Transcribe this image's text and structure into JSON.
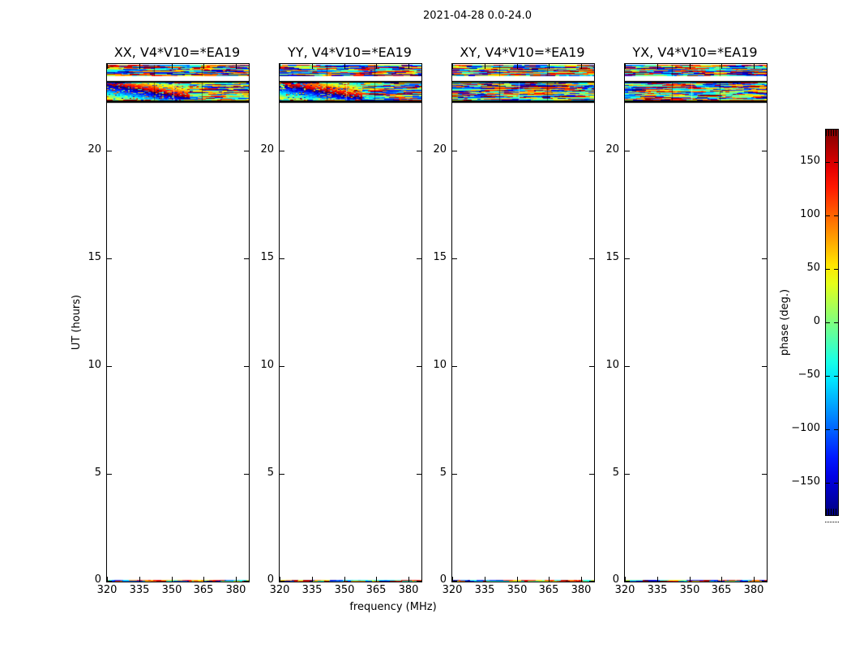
{
  "chart_data": {
    "type": "heatmap",
    "suptitle": "2021-04-28 0.0-24.0",
    "xlabel": "frequency (MHz)",
    "ylabel": "UT (hours)",
    "panels": [
      {
        "title": "XX, V4*V10=*EA19",
        "phase_wrap_diagonal": true
      },
      {
        "title": "YY, V4*V10=*EA19",
        "phase_wrap_diagonal": true
      },
      {
        "title": "XY, V4*V10=*EA19",
        "phase_wrap_diagonal": false
      },
      {
        "title": "YX, V4*V10=*EA19",
        "phase_wrap_diagonal": false
      }
    ],
    "xlim": [
      320,
      386
    ],
    "ylim": [
      0,
      24
    ],
    "xticks": [
      320,
      335,
      350,
      365,
      380
    ],
    "yticks": [
      0,
      5,
      10,
      15,
      20
    ],
    "colorbar": {
      "label": "phase (deg.)",
      "min": -180,
      "max": 180,
      "ticks": [
        150,
        100,
        50,
        0,
        -50,
        -100,
        -150
      ],
      "colormap": "jet"
    },
    "data_bands": [
      {
        "ut": [
          23.44,
          23.95
        ],
        "style": "streaks",
        "content": "noisy multicolor phase streaks across full frequency range"
      },
      {
        "ut": [
          22.31,
          23.14
        ],
        "style": "streaks-with-diagonal",
        "content": "noisy phase streaks; XX and YY panels show diagonal phase-wrap rainbow sweep; black border rows above and below"
      },
      {
        "ut": [
          0.0,
          0.08
        ],
        "style": "thin-strip",
        "content": "thin noisy colored strip along the bottom axis"
      }
    ]
  }
}
